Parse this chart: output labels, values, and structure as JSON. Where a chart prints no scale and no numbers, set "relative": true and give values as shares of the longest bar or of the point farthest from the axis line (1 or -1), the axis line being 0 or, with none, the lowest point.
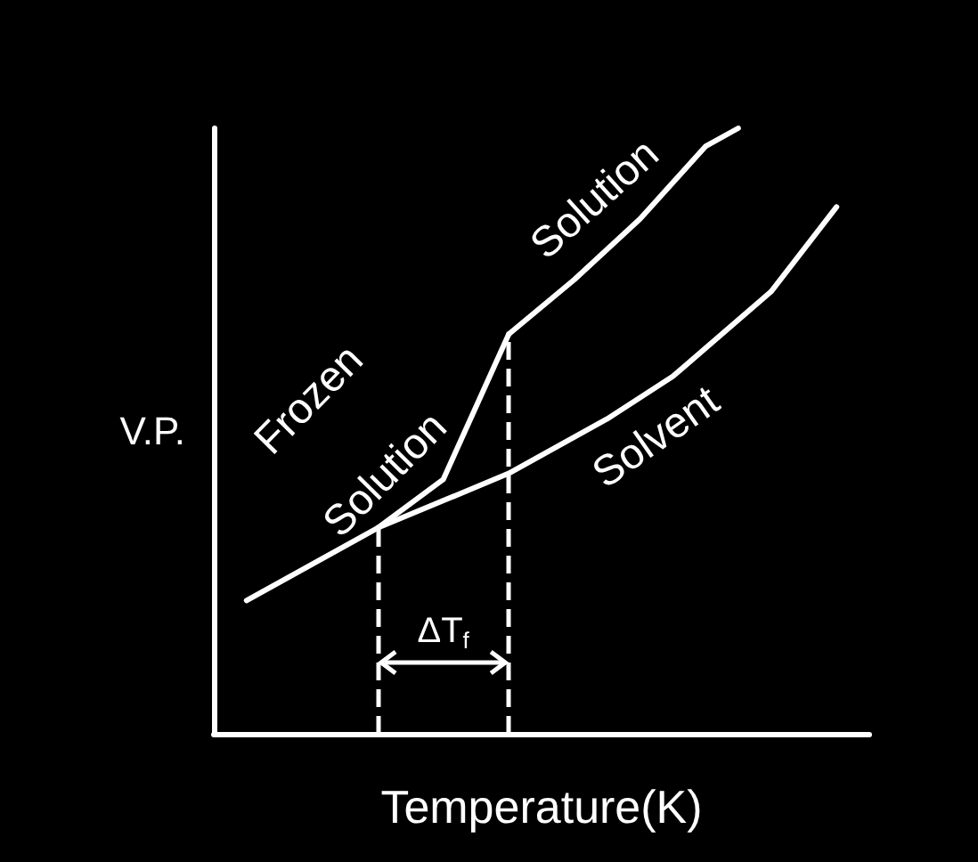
{
  "chart_data": {
    "type": "line",
    "relative": true,
    "xlabel": "Temperature(K)",
    "ylabel": "V.P.",
    "grid": false,
    "legend": false,
    "marker": "none",
    "line_style": "solid",
    "categories": [
      null,
      null,
      null,
      null,
      null,
      null,
      null,
      null,
      null,
      null,
      null,
      null,
      null,
      null,
      null,
      null,
      null,
      null,
      null,
      null,
      null
    ],
    "series": [
      {
        "name": "Frozen Solution",
        "color": "#ffffff",
        "values": [
          null,
          0.22,
          null,
          0.28,
          null,
          0.34,
          null,
          0.42,
          null,
          0.66,
          null,
          null,
          null,
          null,
          null,
          null,
          null,
          null,
          null,
          null,
          null
        ]
      },
      {
        "name": "Solution",
        "color": "#ffffff",
        "values": [
          null,
          null,
          null,
          null,
          null,
          null,
          null,
          null,
          null,
          0.66,
          null,
          0.75,
          null,
          0.85,
          null,
          0.97,
          1,
          null,
          null,
          null,
          null
        ]
      },
      {
        "name": "Solvent",
        "color": "#ffffff",
        "values": [
          null,
          null,
          null,
          null,
          null,
          0.34,
          null,
          null,
          null,
          0.43,
          null,
          null,
          0.52,
          null,
          0.59,
          null,
          null,
          0.73,
          null,
          0.87,
          null
        ]
      }
    ],
    "annotations": [
      "ΔT$_{f}$"
    ]
  }
}
